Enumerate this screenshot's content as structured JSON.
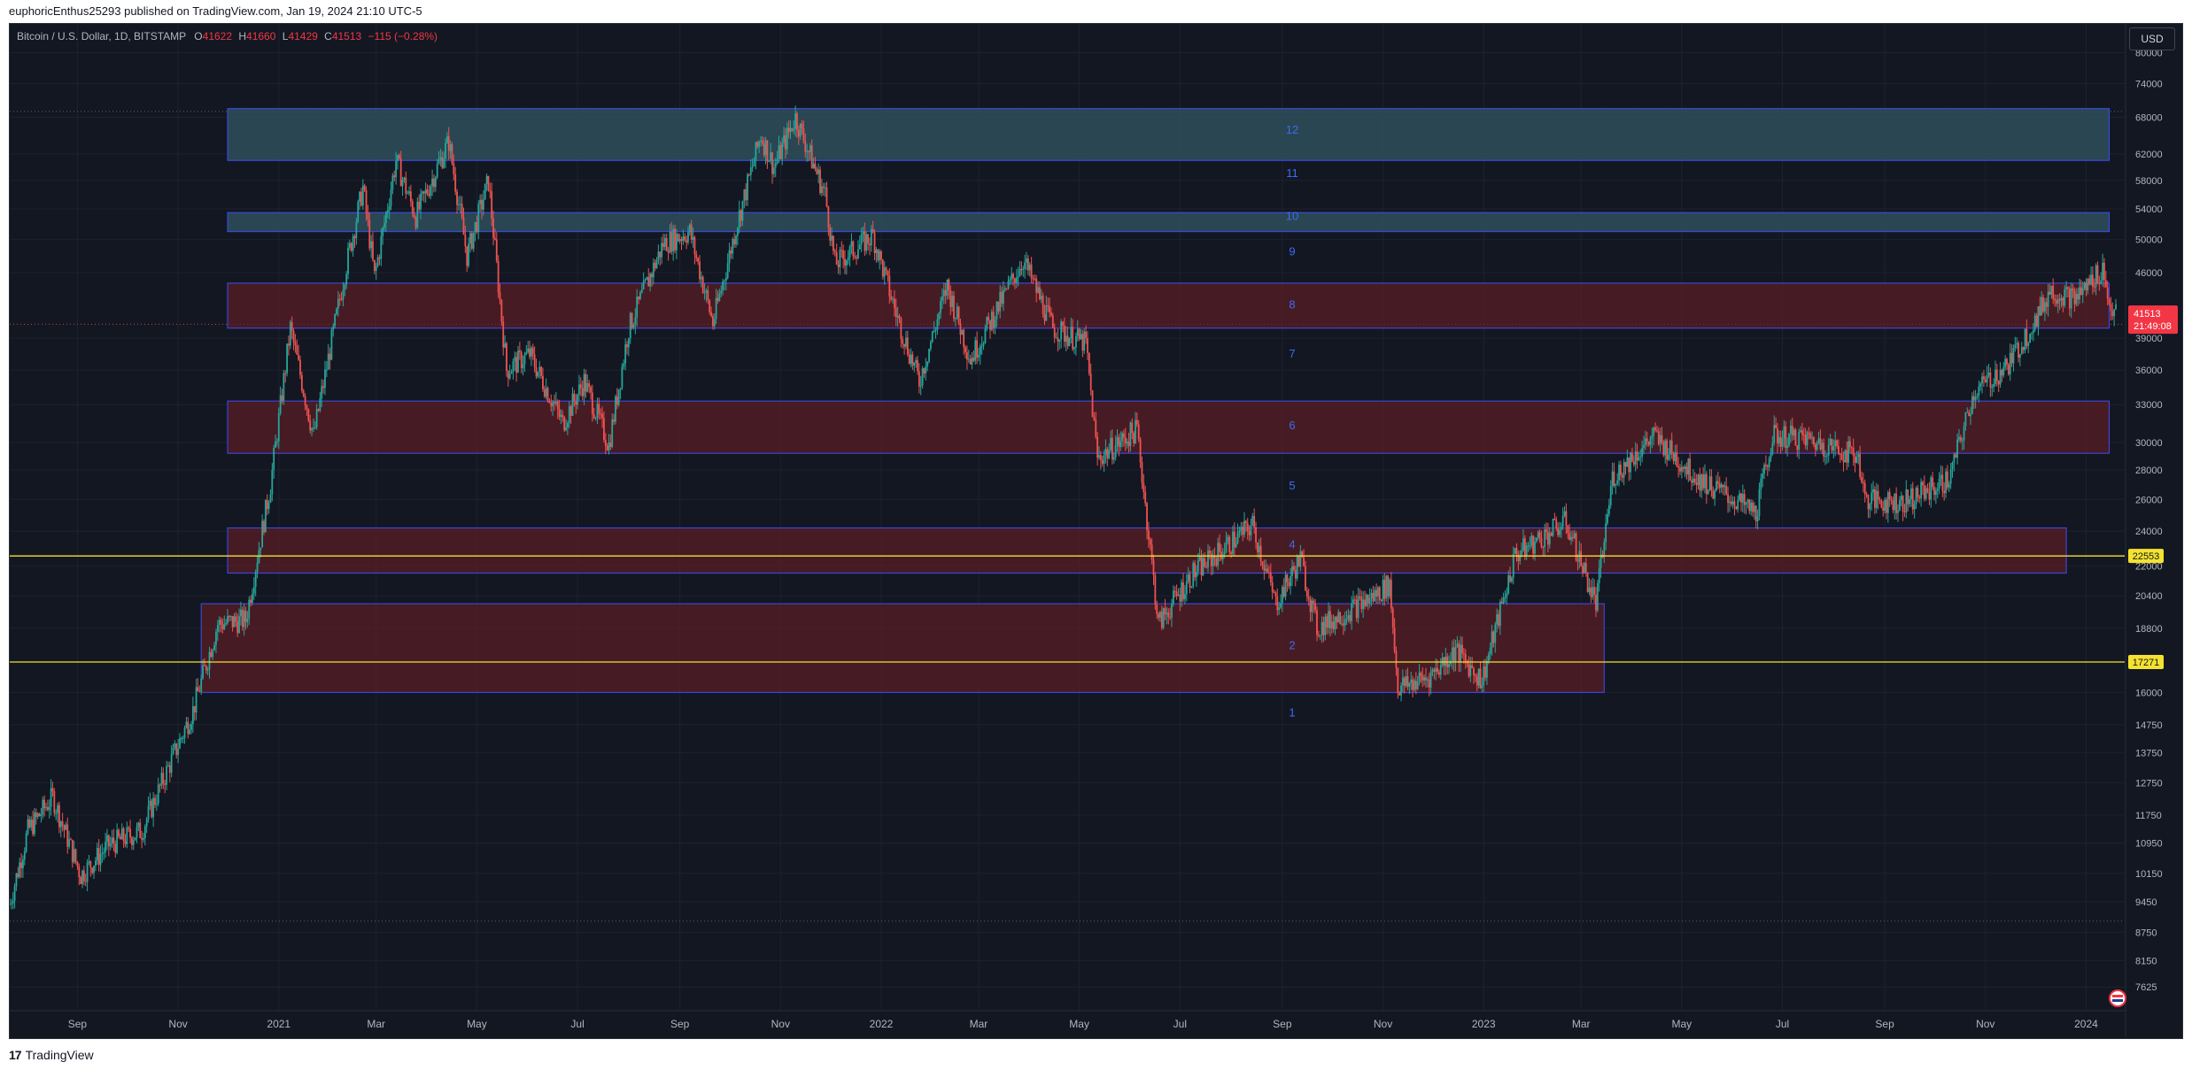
{
  "header": {
    "published_text": "euphoricEnthus25293 published on TradingView.com, Jan 19, 2024 21:10 UTC-5"
  },
  "symbol": {
    "name": "Bitcoin / U.S. Dollar, 1D, BITSTAMP",
    "open_label": "O",
    "open": "41622",
    "high_label": "H",
    "high": "41660",
    "low_label": "L",
    "low": "41429",
    "close_label": "C",
    "close": "41513",
    "change": "−115 (−0.28%)"
  },
  "currency_button": "USD",
  "footer": {
    "brand": "TradingView",
    "logo_icon": "tradingview-logo-icon"
  },
  "colors": {
    "background": "#131722",
    "up": "#26a69a",
    "down": "#ef5350",
    "zone_red": "#5a1e26",
    "zone_teal": "#2e4f5a",
    "zone_border": "#3d4ef5",
    "hline": "#f4e230",
    "price_tag": "#f23645"
  },
  "chart_data": {
    "type": "candlestick",
    "scale": "log",
    "symbol": "Bitcoin / U.S. Dollar",
    "interval": "1D",
    "exchange": "BITSTAMP",
    "ohlc_last": {
      "open": 41622,
      "high": 41660,
      "low": 41429,
      "close": 41513,
      "change": -115,
      "change_pct": -0.28
    },
    "x_range": [
      "2020-07-22",
      "2024-01-19"
    ],
    "y_range": [
      7200,
      86000
    ],
    "x_ticks": [
      {
        "date": "2020-09-01",
        "label": "Sep"
      },
      {
        "date": "2020-11-01",
        "label": "Nov"
      },
      {
        "date": "2021-01-01",
        "label": "2021"
      },
      {
        "date": "2021-03-01",
        "label": "Mar"
      },
      {
        "date": "2021-05-01",
        "label": "May"
      },
      {
        "date": "2021-07-01",
        "label": "Jul"
      },
      {
        "date": "2021-09-01",
        "label": "Sep"
      },
      {
        "date": "2021-11-01",
        "label": "Nov"
      },
      {
        "date": "2022-01-01",
        "label": "2022"
      },
      {
        "date": "2022-03-01",
        "label": "Mar"
      },
      {
        "date": "2022-05-01",
        "label": "May"
      },
      {
        "date": "2022-07-01",
        "label": "Jul"
      },
      {
        "date": "2022-09-01",
        "label": "Sep"
      },
      {
        "date": "2022-11-01",
        "label": "Nov"
      },
      {
        "date": "2023-01-01",
        "label": "2023"
      },
      {
        "date": "2023-03-01",
        "label": "Mar"
      },
      {
        "date": "2023-05-01",
        "label": "May"
      },
      {
        "date": "2023-07-01",
        "label": "Jul"
      },
      {
        "date": "2023-09-01",
        "label": "Sep"
      },
      {
        "date": "2023-11-01",
        "label": "Nov"
      },
      {
        "date": "2024-01-01",
        "label": "2024"
      }
    ],
    "y_ticks": [
      80000,
      74000,
      68000,
      62000,
      58000,
      54000,
      50000,
      46000,
      39000,
      36000,
      33000,
      30000,
      28000,
      26000,
      24000,
      22000,
      20400,
      18800,
      16000,
      14750,
      13750,
      12750,
      11750,
      10950,
      10150,
      9450,
      8750,
      8150,
      7625
    ],
    "price_path": [
      [
        "2020-07-22",
        9400
      ],
      [
        "2020-08-02",
        11300
      ],
      [
        "2020-08-17",
        12300
      ],
      [
        "2020-09-03",
        10100
      ],
      [
        "2020-09-20",
        10900
      ],
      [
        "2020-10-10",
        11300
      ],
      [
        "2020-10-25",
        13100
      ],
      [
        "2020-11-10",
        15300
      ],
      [
        "2020-11-25",
        19000
      ],
      [
        "2020-12-12",
        19200
      ],
      [
        "2020-12-27",
        27000
      ],
      [
        "2021-01-08",
        40000
      ],
      [
        "2021-01-22",
        30500
      ],
      [
        "2021-02-10",
        46000
      ],
      [
        "2021-02-21",
        57000
      ],
      [
        "2021-02-28",
        45500
      ],
      [
        "2021-03-13",
        61000
      ],
      [
        "2021-03-25",
        53000
      ],
      [
        "2021-04-14",
        64000
      ],
      [
        "2021-04-25",
        48000
      ],
      [
        "2021-05-08",
        58000
      ],
      [
        "2021-05-19",
        36000
      ],
      [
        "2021-06-02",
        37500
      ],
      [
        "2021-06-22",
        31500
      ],
      [
        "2021-07-05",
        35000
      ],
      [
        "2021-07-20",
        29800
      ],
      [
        "2021-08-01",
        40000
      ],
      [
        "2021-08-22",
        49500
      ],
      [
        "2021-09-07",
        51000
      ],
      [
        "2021-09-21",
        40500
      ],
      [
        "2021-10-05",
        51500
      ],
      [
        "2021-10-20",
        65000
      ],
      [
        "2021-10-28",
        60000
      ],
      [
        "2021-11-10",
        68000
      ],
      [
        "2021-11-28",
        56000
      ],
      [
        "2021-12-04",
        47000
      ],
      [
        "2021-12-27",
        50500
      ],
      [
        "2022-01-10",
        41500
      ],
      [
        "2022-01-24",
        35000
      ],
      [
        "2022-02-10",
        44500
      ],
      [
        "2022-02-24",
        37000
      ],
      [
        "2022-03-28",
        47500
      ],
      [
        "2022-04-15",
        40000
      ],
      [
        "2022-05-05",
        38500
      ],
      [
        "2022-05-12",
        28800
      ],
      [
        "2022-06-05",
        31000
      ],
      [
        "2022-06-18",
        19000
      ],
      [
        "2022-07-08",
        21500
      ],
      [
        "2022-08-14",
        24400
      ],
      [
        "2022-08-28",
        20000
      ],
      [
        "2022-09-12",
        22400
      ],
      [
        "2022-09-22",
        18800
      ],
      [
        "2022-10-25",
        20300
      ],
      [
        "2022-11-05",
        21000
      ],
      [
        "2022-11-10",
        16200
      ],
      [
        "2022-11-28",
        16600
      ],
      [
        "2022-12-15",
        17800
      ],
      [
        "2022-12-31",
        16500
      ],
      [
        "2023-01-20",
        22600
      ],
      [
        "2023-02-20",
        24600
      ],
      [
        "2023-03-10",
        20000
      ],
      [
        "2023-03-20",
        27500
      ],
      [
        "2023-04-14",
        30500
      ],
      [
        "2023-05-10",
        27500
      ],
      [
        "2023-06-15",
        25100
      ],
      [
        "2023-06-25",
        30500
      ],
      [
        "2023-07-15",
        30300
      ],
      [
        "2023-08-16",
        29000
      ],
      [
        "2023-08-20",
        26000
      ],
      [
        "2023-09-12",
        25800
      ],
      [
        "2023-10-10",
        27300
      ],
      [
        "2023-10-25",
        34000
      ],
      [
        "2023-11-15",
        36500
      ],
      [
        "2023-12-05",
        42000
      ],
      [
        "2023-12-10",
        44000
      ],
      [
        "2023-12-25",
        43000
      ],
      [
        "2024-01-11",
        46500
      ],
      [
        "2024-01-15",
        42500
      ],
      [
        "2024-01-19",
        41513
      ]
    ],
    "zones": [
      {
        "label": "12",
        "color": "teal",
        "from": "2020-12-01",
        "to": "2024-01-15",
        "low": 61000,
        "high": 69500
      },
      {
        "label": "10",
        "color": "teal",
        "from": "2020-12-01",
        "to": "2024-01-15",
        "low": 51000,
        "high": 53500
      },
      {
        "label": "8",
        "color": "red",
        "from": "2020-12-01",
        "to": "2024-01-15",
        "low": 40000,
        "high": 44800
      },
      {
        "label": "6",
        "color": "red",
        "from": "2020-12-01",
        "to": "2024-01-15",
        "low": 29200,
        "high": 33300
      },
      {
        "label": "4",
        "color": "red",
        "from": "2020-12-01",
        "to": "2023-12-20",
        "low": 21600,
        "high": 24200
      },
      {
        "label": "",
        "color": "red",
        "from": "2020-11-15",
        "to": "2023-03-15",
        "low": 16000,
        "high": 20000
      }
    ],
    "zone_numbers": [
      {
        "label": "12",
        "price": 65800
      },
      {
        "label": "11",
        "price": 59000
      },
      {
        "label": "10",
        "price": 53000
      },
      {
        "label": "9",
        "price": 48500
      },
      {
        "label": "8",
        "price": 42400
      },
      {
        "label": "7",
        "price": 37500
      },
      {
        "label": "6",
        "price": 31300
      },
      {
        "label": "5",
        "price": 26900
      },
      {
        "label": "4",
        "price": 23200
      },
      {
        "label": "2",
        "price": 18000
      },
      {
        "label": "1",
        "price": 15200
      }
    ],
    "horizontal_lines": [
      {
        "price": 22553,
        "label": "22553"
      },
      {
        "price": 17271,
        "label": "17271"
      }
    ],
    "dotted_levels": [
      69000,
      40400,
      9000
    ],
    "last_price": {
      "price": 41513,
      "label": "41513",
      "countdown": "21:49:08"
    }
  }
}
